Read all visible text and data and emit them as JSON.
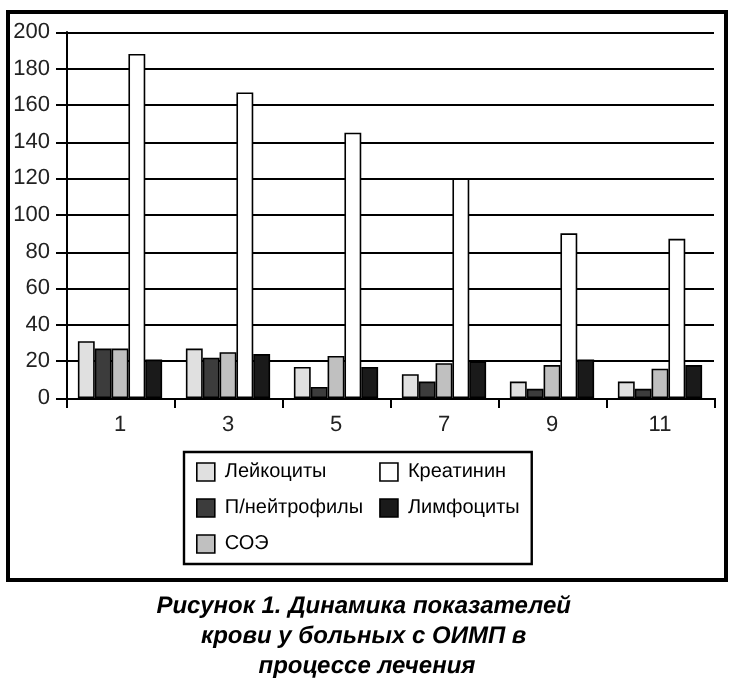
{
  "chart_data": {
    "type": "bar",
    "title": "Рисунок 1. Динамика показателей крови у больных с ОИМП в процессе лечения",
    "categories": [
      "1",
      "3",
      "5",
      "7",
      "9",
      "11"
    ],
    "series": [
      {
        "name": "Лейкоциты",
        "color": "#e0e0e0",
        "values": [
          31,
          27,
          17,
          13,
          9,
          9
        ]
      },
      {
        "name": "П/нейтрофилы",
        "color": "#3c3c3c",
        "values": [
          27,
          22,
          6,
          9,
          5,
          5
        ]
      },
      {
        "name": "СОЭ",
        "color": "#c0c0c0",
        "values": [
          27,
          25,
          23,
          19,
          18,
          16
        ]
      },
      {
        "name": "Креатинин",
        "color": "#ffffff",
        "values": [
          188,
          167,
          145,
          120,
          90,
          87
        ]
      },
      {
        "name": "Лимфоциты",
        "color": "#1a1a1a",
        "values": [
          21,
          24,
          17,
          20,
          21,
          18
        ]
      }
    ],
    "ylim": [
      0,
      200
    ],
    "yticks": [
      0,
      20,
      40,
      60,
      80,
      100,
      120,
      140,
      160,
      180,
      200
    ],
    "grid": true,
    "legend": "bottom"
  }
}
